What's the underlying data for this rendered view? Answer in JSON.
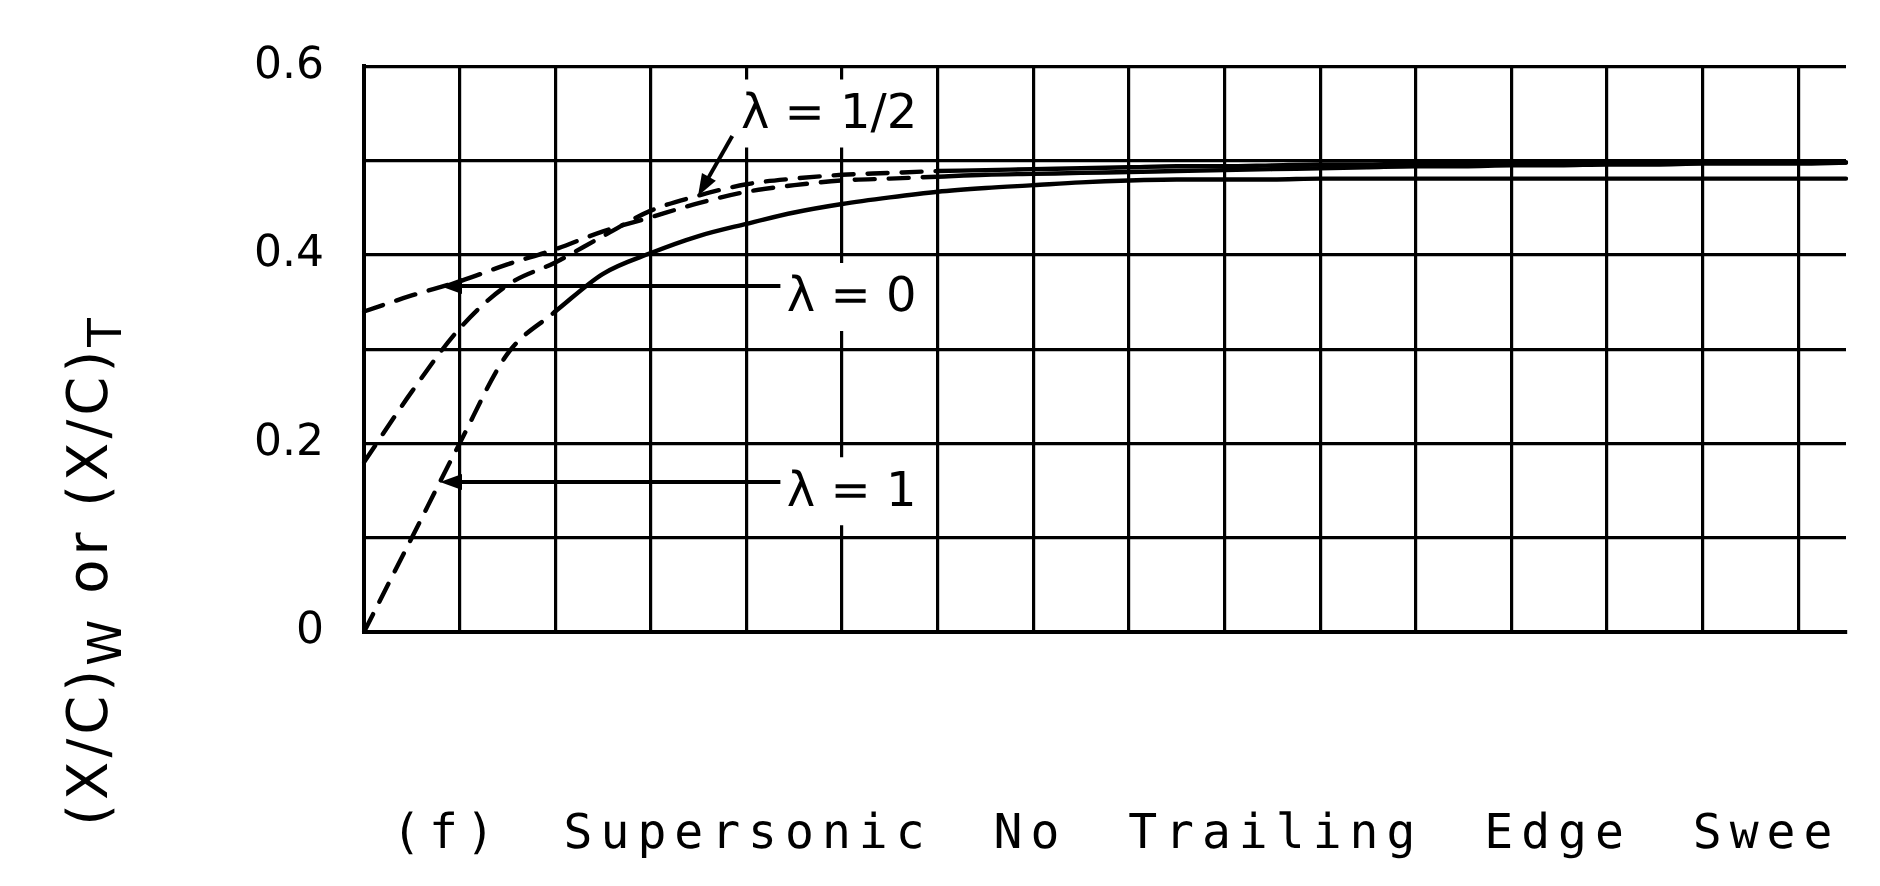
{
  "chart_data": {
    "type": "line",
    "title": "(f) Supersonic No Trailing Edge Swee",
    "ylabel": "(X/C)$_{W}$ or (X/C)$_{T}$",
    "categories": [
      null,
      null,
      null,
      null,
      null,
      null,
      null,
      null,
      null,
      null,
      null,
      null,
      null,
      null,
      null,
      null,
      null,
      null,
      null,
      null,
      null,
      null,
      null,
      null,
      null,
      null,
      null,
      null,
      null,
      null,
      null,
      null
    ],
    "series": [
      {
        "name": "λ = 0",
        "color": "#000000",
        "line_style": "dashed",
        "values": [
          0.34,
          0.357,
          0.372,
          0.39,
          0.406,
          0.425,
          0.44,
          0.455,
          0.467,
          0.474,
          0.479,
          0.481,
          0.483,
          null,
          null,
          null,
          null,
          null,
          null,
          null,
          null,
          null,
          null,
          null,
          null,
          null,
          null,
          null,
          null,
          null,
          null,
          null
        ]
      },
      {
        "name": "λ = 1/2",
        "color": "#000000",
        "line_style": "dashed",
        "values": [
          0.18,
          0.255,
          0.322,
          0.368,
          0.392,
          0.42,
          0.447,
          0.463,
          0.475,
          0.481,
          0.485,
          0.487,
          0.489,
          null,
          null,
          null,
          null,
          null,
          null,
          null,
          null,
          null,
          null,
          null,
          null,
          null,
          null,
          null,
          null,
          null,
          null,
          null
        ]
      },
      {
        "name": "λ = 1",
        "color": "#000000",
        "line_style": "dashed",
        "values": [
          0,
          0.1,
          0.2,
          0.295,
          0.34,
          null,
          null,
          null,
          null,
          null,
          null,
          null,
          null,
          null,
          null,
          null,
          null,
          null,
          null,
          null,
          null,
          null,
          null,
          null,
          null,
          null,
          null,
          null,
          null,
          null,
          null,
          null
        ]
      },
      {
        "color": "#000000",
        "line_style": "solid",
        "values": [
          null,
          null,
          null,
          null,
          null,
          null,
          null,
          null,
          null,
          null,
          null,
          null,
          0.483,
          0.485,
          0.486,
          0.487,
          0.488,
          0.489,
          0.49,
          0.491,
          0.492,
          0.493,
          0.494,
          0.494,
          0.495,
          0.495,
          0.496,
          0.496,
          0.497,
          0.497,
          0.497,
          0.498
        ]
      },
      {
        "color": "#000000",
        "line_style": "solid",
        "values": [
          null,
          null,
          null,
          null,
          null,
          null,
          null,
          null,
          null,
          null,
          null,
          null,
          0.489,
          0.49,
          0.491,
          0.492,
          0.493,
          0.494,
          0.494,
          0.495,
          0.496,
          0.496,
          0.497,
          0.497,
          0.497,
          0.498,
          0.498,
          0.498,
          0.498,
          0.498,
          0.498,
          0.498
        ]
      },
      {
        "color": "#000000",
        "line_style": "solid",
        "values": [
          null,
          null,
          null,
          null,
          0.34,
          0.38,
          0.402,
          0.42,
          0.433,
          0.445,
          0.454,
          0.461,
          0.467,
          0.471,
          0.474,
          0.477,
          0.479,
          0.48,
          0.48,
          0.48,
          0.481,
          0.481,
          0.481,
          0.481,
          0.481,
          0.481,
          0.481,
          0.481,
          0.481,
          0.481,
          0.481,
          0.481
        ]
      }
    ],
    "ylim": [
      0,
      0.6
    ],
    "yticks": [
      0,
      {
        "value": 0.1,
        "label": null
      },
      0.2,
      {
        "value": 0.3,
        "label": null
      },
      0.4,
      {
        "value": 0.5,
        "label": null
      },
      0.6
    ],
    "grid": true,
    "tick_labels": "y",
    "marker": "none"
  }
}
